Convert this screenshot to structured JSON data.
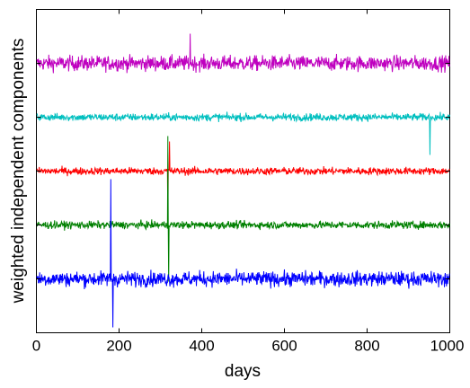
{
  "chart_data": {
    "type": "line",
    "xlabel": "days",
    "ylabel": "weighted independent components",
    "xlim": [
      0,
      1000
    ],
    "x_ticks": [
      "0",
      "200",
      "400",
      "600",
      "800",
      "1000"
    ],
    "grid": false,
    "legend": "none",
    "y_tick_count": 6,
    "series": [
      {
        "color": "#bf00bf",
        "baseline": 0.0,
        "noise": 0.1,
        "spikes": [
          {
            "x": 372,
            "value": 0.55
          }
        ]
      },
      {
        "color": "#00bfbf",
        "baseline": -1.0,
        "noise": 0.05,
        "spikes": [
          {
            "x": 952,
            "value": -0.7
          }
        ]
      },
      {
        "color": "#ff0000",
        "baseline": -2.0,
        "noise": 0.05,
        "spikes": [
          {
            "x": 318,
            "value": -0.95
          },
          {
            "x": 322,
            "value": 0.55
          }
        ]
      },
      {
        "color": "#008000",
        "baseline": -3.0,
        "noise": 0.05,
        "spikes": [
          {
            "x": 318,
            "value": 1.65
          },
          {
            "x": 320,
            "value": -1.05
          }
        ]
      },
      {
        "color": "#0000ff",
        "baseline": -4.0,
        "noise": 0.1,
        "spikes": [
          {
            "x": 180,
            "value": 1.85
          },
          {
            "x": 185,
            "value": -0.9
          }
        ]
      }
    ]
  }
}
